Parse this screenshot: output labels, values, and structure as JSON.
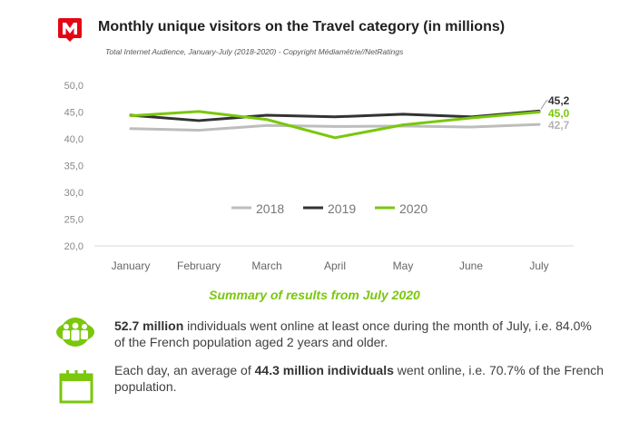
{
  "header": {
    "title": "Monthly unique visitors on the Travel category (in millions)",
    "subtitle": "Total Internet Audience, January-July (2018-2020) - Copyright Médiamétrie//NetRatings"
  },
  "colors": {
    "accent": "#e30613",
    "green": "#7ac70c",
    "dark": "#333333",
    "grey": "#bdbdbd"
  },
  "chart_data": {
    "type": "line",
    "categories": [
      "January",
      "February",
      "March",
      "April",
      "May",
      "June",
      "July"
    ],
    "series": [
      {
        "name": "2018",
        "color": "#bdbdbd",
        "values": [
          41.9,
          41.6,
          42.5,
          42.3,
          42.4,
          42.2,
          42.7
        ],
        "end_label": "42,7"
      },
      {
        "name": "2019",
        "color": "#333333",
        "values": [
          44.4,
          43.4,
          44.4,
          44.1,
          44.6,
          44.1,
          45.2
        ],
        "end_label": "45,2"
      },
      {
        "name": "2020",
        "color": "#7ac70c",
        "values": [
          44.3,
          45.1,
          43.6,
          40.2,
          42.6,
          43.9,
          45.0
        ],
        "end_label": "45,0"
      }
    ],
    "yticks": [
      "20,0",
      "25,0",
      "30,0",
      "35,0",
      "40,0",
      "45,0",
      "50,0"
    ],
    "ylim": [
      20,
      50
    ],
    "grid": false,
    "legend": "center"
  },
  "summary": {
    "title": "Summary of results from July 2020",
    "items": [
      {
        "icon": "people-icon",
        "bold": "52.7 million",
        "text": " individuals went online at least once during the month of July, i.e. 84.0% of the French population aged 2 years and older."
      },
      {
        "icon": "calendar-icon",
        "prefix": "Each day, an average of ",
        "bold": "44.3 million individuals",
        "text": " went online, i.e. 70.7% of the French population."
      }
    ]
  }
}
